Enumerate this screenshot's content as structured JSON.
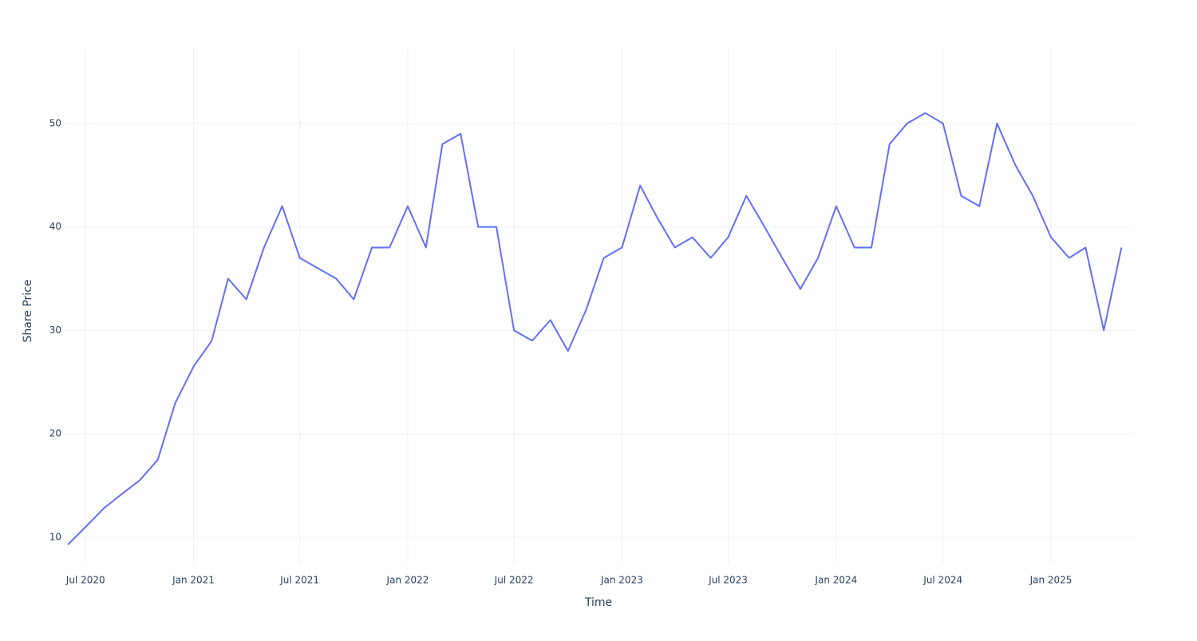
{
  "chart_data": {
    "type": "line",
    "x_label": "Time",
    "y_label": "Share Price",
    "x": [
      "2020-06",
      "2020-07",
      "2020-08",
      "2020-09",
      "2020-10",
      "2020-11",
      "2020-12",
      "2021-01",
      "2021-02",
      "2021-03",
      "2021-04",
      "2021-05",
      "2021-06",
      "2021-07",
      "2021-08",
      "2021-09",
      "2021-10",
      "2021-11",
      "2021-12",
      "2022-01",
      "2022-02",
      "2022-03",
      "2022-04",
      "2022-05",
      "2022-06",
      "2022-07",
      "2022-08",
      "2022-09",
      "2022-10",
      "2022-11",
      "2022-12",
      "2023-01",
      "2023-02",
      "2023-03",
      "2023-04",
      "2023-05",
      "2023-06",
      "2023-07",
      "2023-08",
      "2023-09",
      "2023-10",
      "2023-11",
      "2023-12",
      "2024-01",
      "2024-02",
      "2024-03",
      "2024-04",
      "2024-05",
      "2024-06",
      "2024-07",
      "2024-08",
      "2024-09",
      "2024-10",
      "2024-11",
      "2024-12",
      "2025-01",
      "2025-02",
      "2025-03",
      "2025-04",
      "2025-05"
    ],
    "series": [
      {
        "color": "#636efa",
        "values": [
          9.3,
          11,
          12.8,
          14.2,
          15.5,
          17.5,
          23,
          26.5,
          29,
          35,
          33,
          38,
          42,
          37,
          36,
          35,
          33,
          38,
          38,
          42,
          38,
          48,
          49,
          40,
          40,
          30,
          29,
          31,
          28,
          32,
          37,
          38,
          44,
          41,
          38,
          39,
          37,
          39,
          43,
          40,
          37,
          34,
          37,
          42,
          38,
          38,
          48,
          50,
          51,
          50,
          43,
          42,
          50,
          46,
          43,
          39,
          37,
          38,
          30,
          38
        ]
      }
    ],
    "xlim": [
      "2020-05-25",
      "2025-05-21"
    ],
    "xticks": [
      {
        "value": "2020-07",
        "label": "Jul 2020"
      },
      {
        "value": "2021-01",
        "label": "Jan 2021"
      },
      {
        "value": "2021-07",
        "label": "Jul 2021"
      },
      {
        "value": "2022-01",
        "label": "Jan 2022"
      },
      {
        "value": "2022-07",
        "label": "Jul 2022"
      },
      {
        "value": "2023-01",
        "label": "Jan 2023"
      },
      {
        "value": "2023-07",
        "label": "Jul 2023"
      },
      {
        "value": "2024-01",
        "label": "Jan 2024"
      },
      {
        "value": "2024-07",
        "label": "Jul 2024"
      },
      {
        "value": "2025-01",
        "label": "Jan 2025"
      }
    ],
    "ylim": [
      7.46,
      57.3
    ],
    "yticks": [
      10,
      20,
      30,
      40,
      50
    ],
    "grid": true
  }
}
